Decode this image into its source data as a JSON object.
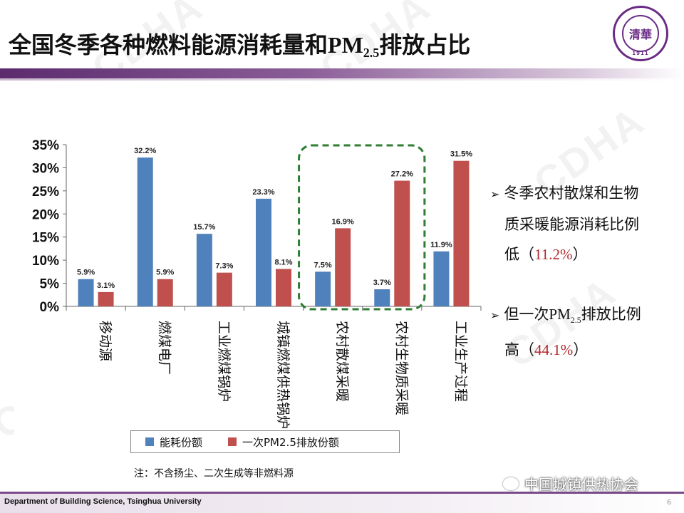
{
  "slide": {
    "title_main": "全国冬季各种燃料能源消耗量和",
    "title_pm": "PM",
    "title_sub": "2.5",
    "title_tail": "排放占比",
    "seal_center": "清華",
    "seal_year": "1911",
    "seal_ring": "TSINGHUA UNIVERSITY"
  },
  "watermark": "CDHA",
  "chart_data": {
    "type": "bar",
    "categories": [
      "移动源",
      "燃煤电厂",
      "工业燃煤锅炉",
      "城镇燃煤供热锅炉",
      "农村散煤采暖",
      "农村生物质采暖",
      "工业生产过程"
    ],
    "series": [
      {
        "name": "能耗份额",
        "values": [
          5.9,
          32.2,
          15.7,
          23.3,
          7.5,
          3.7,
          11.9
        ],
        "labels": [
          "5.9%",
          "32.2%",
          "15.7%",
          "23.3%",
          "7.5%",
          "3.7%",
          "11.9%"
        ],
        "color": "#4f81bd"
      },
      {
        "name": "一次PM2.5排放份额",
        "values": [
          3.1,
          5.9,
          7.3,
          8.1,
          16.9,
          27.2,
          31.5
        ],
        "labels": [
          "3.1%",
          "5.9%",
          "7.3%",
          "8.1%",
          "16.9%",
          "27.2%",
          "31.5%"
        ],
        "color": "#c0504d"
      }
    ],
    "ylim": [
      0,
      35
    ],
    "yticks": [
      "0%",
      "5%",
      "10%",
      "15%",
      "20%",
      "25%",
      "30%",
      "35%"
    ],
    "highlight": {
      "categories": [
        "农村散煤采暖",
        "农村生物质采暖"
      ],
      "color": "#2e7d32",
      "style": "dashed"
    }
  },
  "legend": {
    "item1": "能耗份额",
    "item2": "一次PM2.5排放份额",
    "color1": "#4f81bd",
    "color2": "#c0504d"
  },
  "note": "注：不含扬尘、二次生成等非燃料源",
  "bullets": {
    "b1_line1": "冬季农村散煤和生物",
    "b1_line2": "质采暖能源消耗比例",
    "b1_line3_pre": "低（",
    "b1_value": "11.2%",
    "b1_line3_post": "）",
    "b2_pre": "但一次",
    "b2_pm": "PM",
    "b2_sub": "2.5",
    "b2_post": "排放比例",
    "b2_line2_pre": "高（",
    "b2_value": "44.1%",
    "b2_line2_post": "）",
    "arrow": "➢"
  },
  "footer": {
    "text": "Department of Building  Science, Tsinghua  University",
    "page": "6",
    "wechat": "中国城镇供热协会"
  }
}
